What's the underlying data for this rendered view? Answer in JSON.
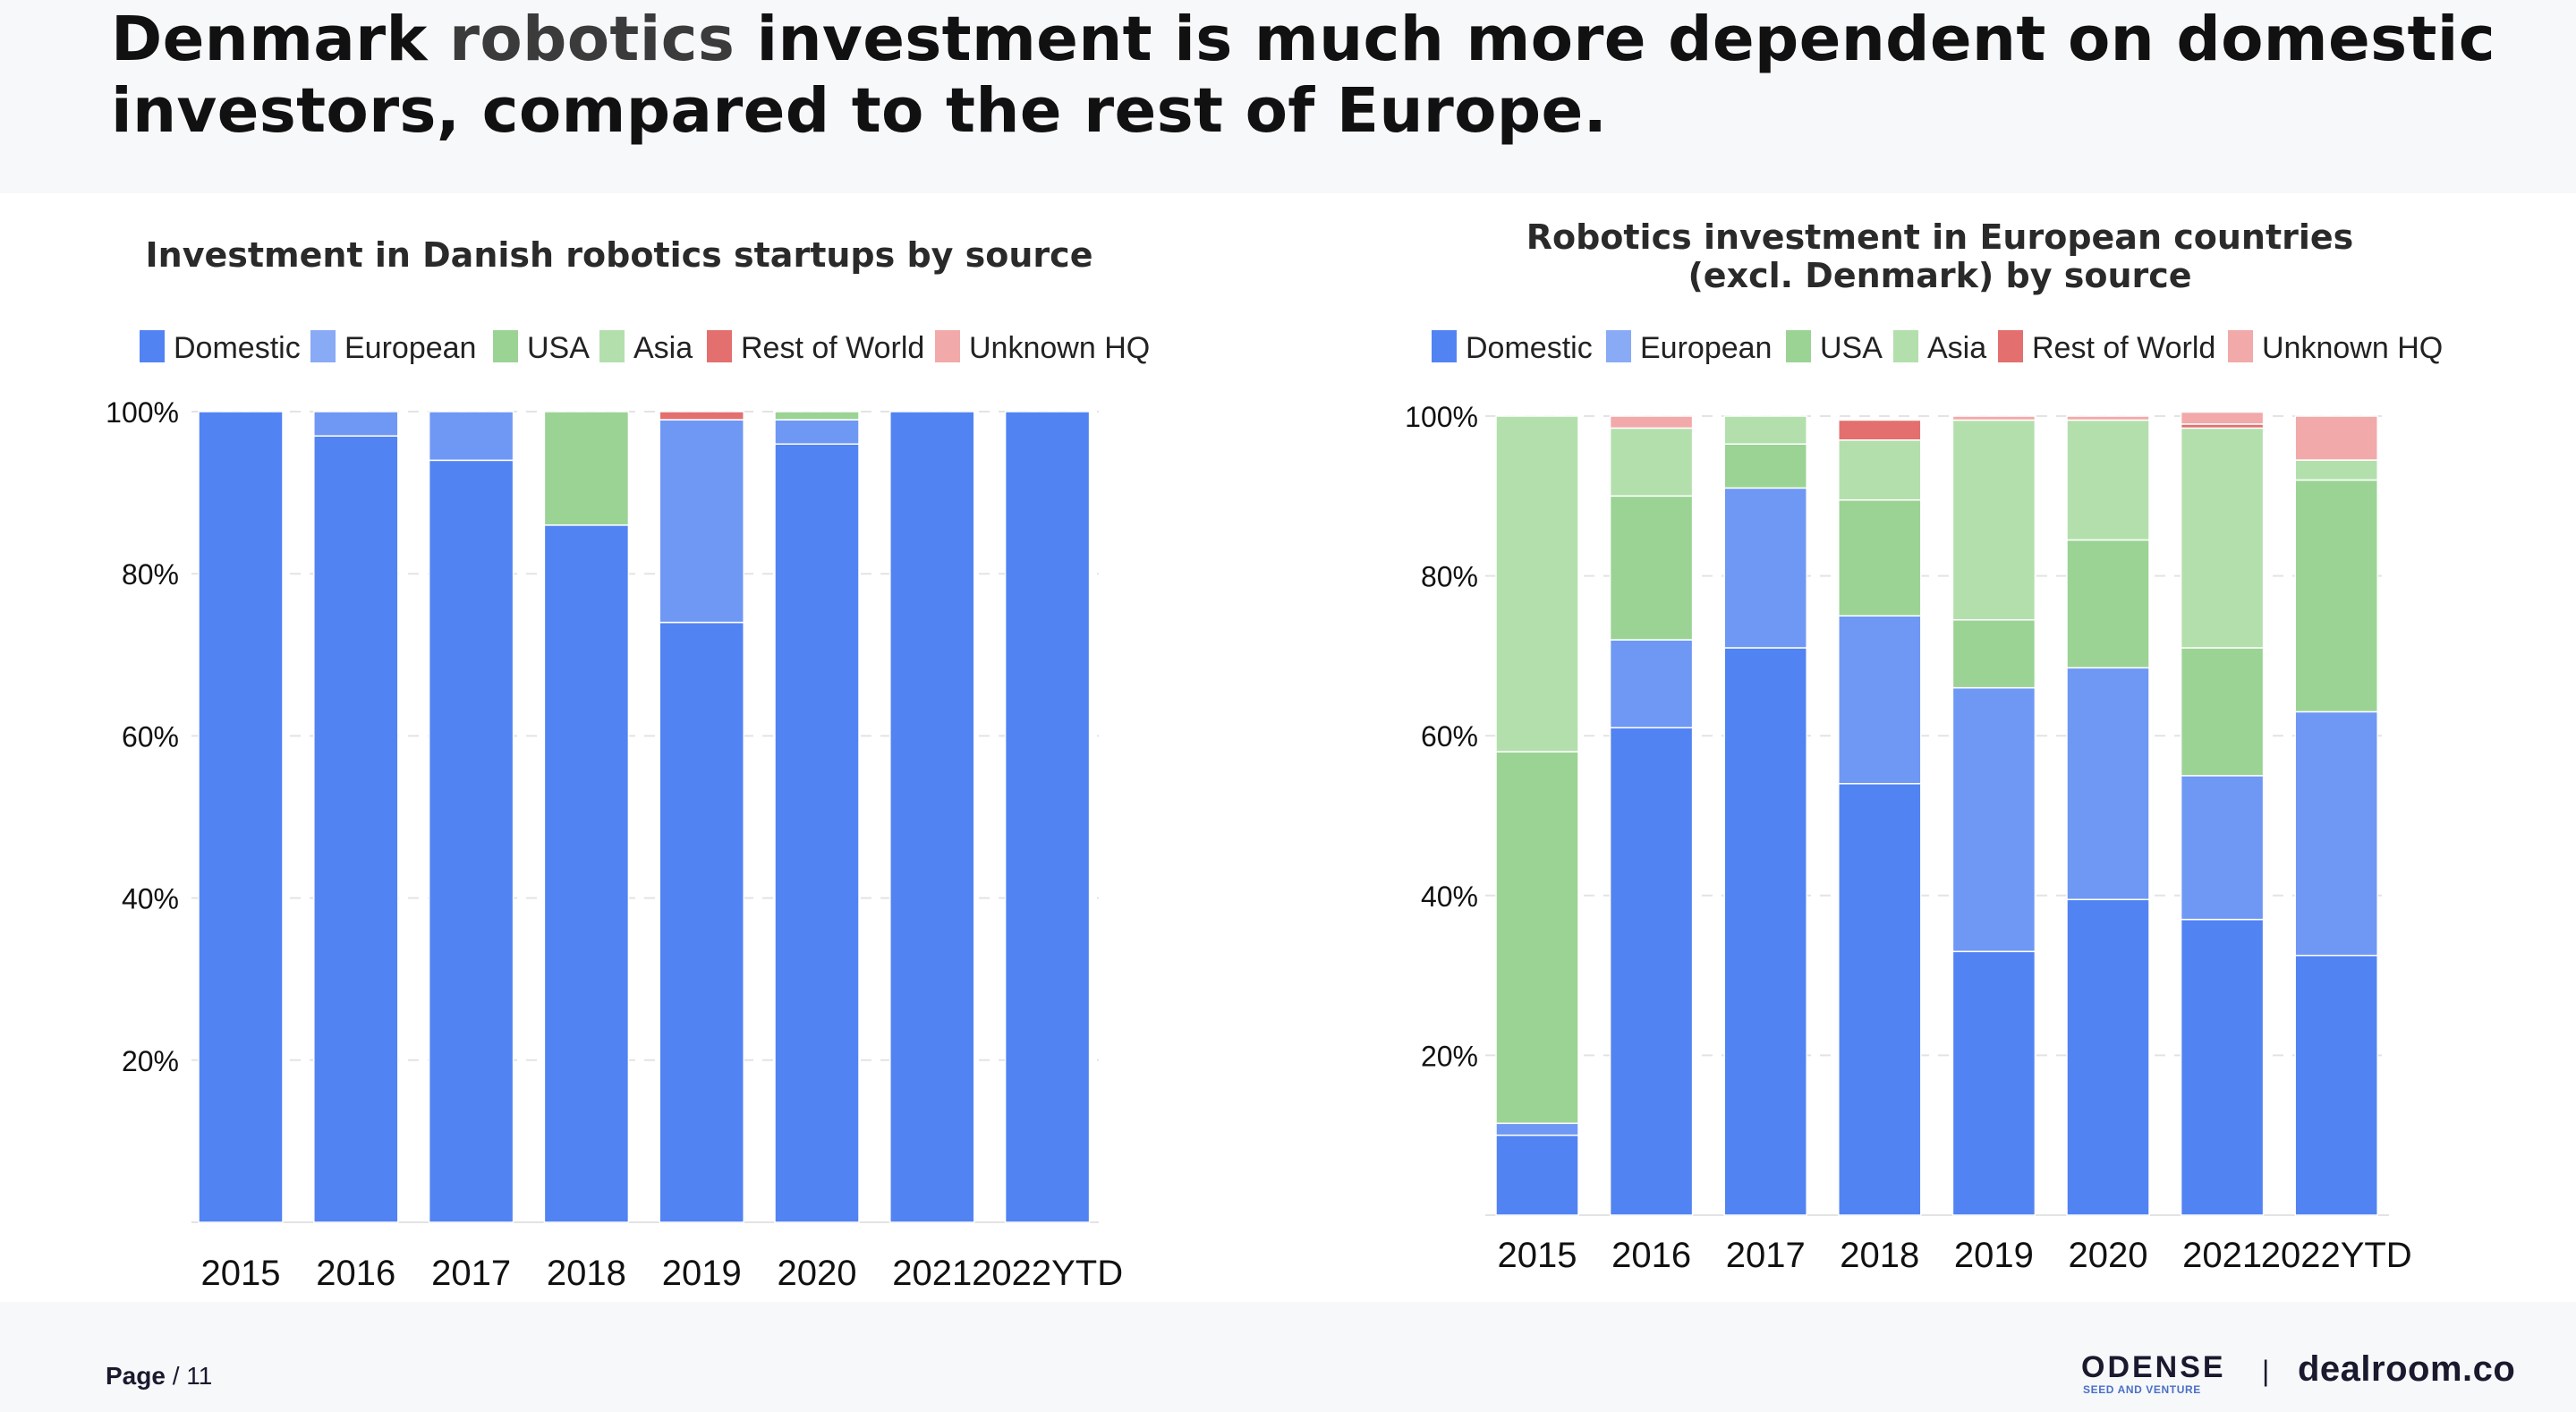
{
  "page": {
    "title_pre": "Denmark ",
    "title_accent": "robotics",
    "title_post": " investment is much more dependent on domestic investors, compared to the rest of Europe.",
    "page_word": "Page",
    "page_sep": " / ",
    "page_number": "11",
    "brand_odense": "ODENSE",
    "brand_odense_sub": "SEED AND VENTURE",
    "brand_separator": "|",
    "brand_dealroom": "dealroom.co"
  },
  "colors": {
    "Domestic": "#5283f2",
    "European": "#6f98f4",
    "USA": "#9bd394",
    "Asia": "#b3dfad",
    "Rest of World": "#e36f6f",
    "Unknown HQ": "#f2a9a9"
  },
  "legend_colors": {
    "Domestic": "#5283f2",
    "European": "#89aaf5",
    "USA": "#9bd394",
    "Asia": "#b3dfad",
    "Rest of World": "#e36f6f",
    "Unknown HQ": "#f2a9a9"
  },
  "chart_data": [
    {
      "type": "bar",
      "stacked": true,
      "title_lines": [
        "Investment in Danish robotics startups by source"
      ],
      "categories": [
        "2015",
        "2016",
        "2017",
        "2018",
        "2019",
        "2020",
        "2021",
        "2022YTD"
      ],
      "ylim": [
        0,
        100
      ],
      "yticks": [
        20,
        40,
        60,
        80,
        100
      ],
      "ytick_labels": [
        "20%",
        "40%",
        "60%",
        "80%",
        "100%"
      ],
      "grid": true,
      "legend_position": "top",
      "series": [
        {
          "name": "Domestic",
          "values": [
            100,
            97,
            94,
            86,
            74,
            96,
            100,
            100
          ]
        },
        {
          "name": "European",
          "values": [
            0,
            3,
            6,
            0,
            25,
            3,
            0,
            0
          ]
        },
        {
          "name": "USA",
          "values": [
            0,
            0,
            0,
            14,
            0,
            1,
            0,
            0
          ]
        },
        {
          "name": "Asia",
          "values": [
            0,
            0,
            0,
            0,
            0,
            0,
            0,
            0
          ]
        },
        {
          "name": "Rest of World",
          "values": [
            0,
            0,
            0,
            0,
            1,
            0,
            0,
            0
          ]
        },
        {
          "name": "Unknown HQ",
          "values": [
            0,
            0,
            0,
            0,
            0,
            0,
            0,
            0
          ]
        }
      ]
    },
    {
      "type": "bar",
      "stacked": true,
      "title_lines": [
        "Robotics investment in European countries",
        "(excl. Denmark) by source"
      ],
      "categories": [
        "2015",
        "2016",
        "2017",
        "2018",
        "2019",
        "2020",
        "2021",
        "2022YTD"
      ],
      "ylim": [
        0,
        100
      ],
      "yticks": [
        20,
        40,
        60,
        80,
        100
      ],
      "ytick_labels": [
        "20%",
        "40%",
        "60%",
        "80%",
        "100%"
      ],
      "grid": true,
      "legend_position": "top",
      "series": [
        {
          "name": "Domestic",
          "values": [
            10,
            61,
            71,
            54,
            33,
            39.5,
            37,
            32.5
          ]
        },
        {
          "name": "European",
          "values": [
            1.5,
            11,
            20,
            21,
            33,
            29,
            18,
            30.5
          ]
        },
        {
          "name": "USA",
          "values": [
            46.5,
            18,
            5.5,
            14.5,
            8.5,
            16,
            16,
            29
          ]
        },
        {
          "name": "Asia",
          "values": [
            42,
            8.5,
            3.5,
            7.5,
            25,
            15,
            27.5,
            2.5
          ]
        },
        {
          "name": "Rest of World",
          "values": [
            0,
            0,
            0,
            2.5,
            0,
            0,
            0.5,
            0
          ]
        },
        {
          "name": "Unknown HQ",
          "values": [
            0,
            1.5,
            0,
            0,
            0.5,
            0.5,
            1.5,
            5.5
          ]
        }
      ]
    }
  ]
}
